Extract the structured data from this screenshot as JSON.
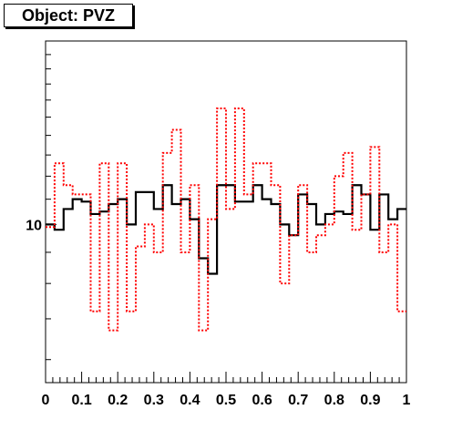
{
  "chart_data": {
    "type": "step-histogram",
    "title": "Object: PVZ",
    "xlabel": "",
    "ylabel": "",
    "xlim": [
      0,
      1
    ],
    "ylog": true,
    "ylim": [
      5.5,
      20
    ],
    "x_ticks": [
      "0",
      "0.1",
      "0.2",
      "0.3",
      "0.4",
      "0.5",
      "0.6",
      "0.7",
      "0.8",
      "0.9",
      "1"
    ],
    "y_tick_labels": [
      {
        "value": 10,
        "label": "10"
      }
    ],
    "bins": 40,
    "series": [
      {
        "style": "solid",
        "color": "#000000",
        "values": [
          10.0,
          9.8,
          10.6,
          11.0,
          10.9,
          10.4,
          10.5,
          10.8,
          11.0,
          10.0,
          11.3,
          11.3,
          10.6,
          11.6,
          10.8,
          11.0,
          10.2,
          8.8,
          8.3,
          11.6,
          11.6,
          10.9,
          10.9,
          11.6,
          11.0,
          10.8,
          10.0,
          9.6,
          11.2,
          10.8,
          10.0,
          10.4,
          10.5,
          10.4,
          11.6,
          11.2,
          9.8,
          11.2,
          10.2,
          10.6
        ]
      },
      {
        "style": "dotted",
        "color": "#ff0000",
        "values": [
          9.9,
          12.6,
          11.6,
          11.2,
          11.2,
          7.2,
          12.6,
          6.7,
          12.6,
          7.2,
          9.2,
          10.0,
          9.0,
          13.1,
          14.3,
          9.0,
          11.6,
          6.7,
          10.2,
          15.5,
          10.6,
          15.5,
          11.2,
          12.6,
          12.6,
          11.6,
          8.0,
          9.6,
          11.6,
          9.0,
          9.6,
          10.0,
          12.0,
          13.1,
          9.8,
          11.2,
          13.4,
          9.0,
          10.0,
          7.2
        ]
      }
    ]
  }
}
